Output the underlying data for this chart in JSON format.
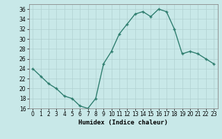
{
  "x": [
    0,
    1,
    2,
    3,
    4,
    5,
    6,
    7,
    8,
    9,
    10,
    11,
    12,
    13,
    14,
    15,
    16,
    17,
    18,
    19,
    20,
    21,
    22,
    23
  ],
  "y": [
    24,
    22.5,
    21,
    20,
    18.5,
    18,
    16.5,
    16,
    18,
    25,
    27.5,
    31,
    33,
    35,
    35.5,
    34.5,
    36,
    35.5,
    32,
    27,
    27.5,
    27,
    26,
    25
  ],
  "line_color": "#2E7D6E",
  "marker": "+",
  "background_color": "#C8E8E8",
  "grid_color": "#B0D0D0",
  "xlabel": "Humidex (Indice chaleur)",
  "ylim": [
    16,
    37
  ],
  "xlim": [
    -0.5,
    23.5
  ],
  "yticks": [
    16,
    18,
    20,
    22,
    24,
    26,
    28,
    30,
    32,
    34,
    36
  ],
  "xticks": [
    0,
    1,
    2,
    3,
    4,
    5,
    6,
    7,
    8,
    9,
    10,
    11,
    12,
    13,
    14,
    15,
    16,
    17,
    18,
    19,
    20,
    21,
    22,
    23
  ],
  "xtick_labels": [
    "0",
    "1",
    "2",
    "3",
    "4",
    "5",
    "6",
    "7",
    "8",
    "9",
    "10",
    "11",
    "12",
    "13",
    "14",
    "15",
    "16",
    "17",
    "18",
    "19",
    "20",
    "21",
    "22",
    "23"
  ],
  "tick_fontsize": 5.5,
  "label_fontsize": 6.5,
  "line_width": 1.0,
  "marker_size": 3.5
}
